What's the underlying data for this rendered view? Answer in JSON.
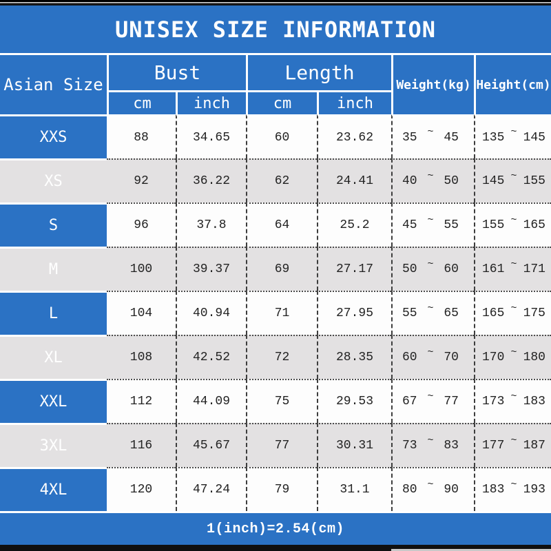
{
  "title": "UNISEX SIZE INFORMATION",
  "footer_note": "1(inch)=2.54(cm)",
  "tilde": "~",
  "header": {
    "asian_size": "Asian Size",
    "bust": "Bust",
    "length": "Length",
    "weight": "Weight(kg)",
    "height": "Height(cm)",
    "cm": "cm",
    "inch": "inch"
  },
  "colors": {
    "blue": "#2b72c4",
    "row_alt": "#e3e1e2",
    "row_base": "#fdfdfd",
    "text": "#222222"
  },
  "rows": [
    {
      "size": "XXS",
      "bust_cm": "88",
      "bust_in": "34.65",
      "len_cm": "60",
      "len_in": "23.62",
      "weight_min": "35",
      "weight_max": "45",
      "height_min": "135",
      "height_max": "145"
    },
    {
      "size": "XS",
      "bust_cm": "92",
      "bust_in": "36.22",
      "len_cm": "62",
      "len_in": "24.41",
      "weight_min": "40",
      "weight_max": "50",
      "height_min": "145",
      "height_max": "155"
    },
    {
      "size": "S",
      "bust_cm": "96",
      "bust_in": "37.8",
      "len_cm": "64",
      "len_in": "25.2",
      "weight_min": "45",
      "weight_max": "55",
      "height_min": "155",
      "height_max": "165"
    },
    {
      "size": "M",
      "bust_cm": "100",
      "bust_in": "39.37",
      "len_cm": "69",
      "len_in": "27.17",
      "weight_min": "50",
      "weight_max": "60",
      "height_min": "161",
      "height_max": "171"
    },
    {
      "size": "L",
      "bust_cm": "104",
      "bust_in": "40.94",
      "len_cm": "71",
      "len_in": "27.95",
      "weight_min": "55",
      "weight_max": "65",
      "height_min": "165",
      "height_max": "175"
    },
    {
      "size": "XL",
      "bust_cm": "108",
      "bust_in": "42.52",
      "len_cm": "72",
      "len_in": "28.35",
      "weight_min": "60",
      "weight_max": "70",
      "height_min": "170",
      "height_max": "180"
    },
    {
      "size": "XXL",
      "bust_cm": "112",
      "bust_in": "44.09",
      "len_cm": "75",
      "len_in": "29.53",
      "weight_min": "67",
      "weight_max": "77",
      "height_min": "173",
      "height_max": "183"
    },
    {
      "size": "3XL",
      "bust_cm": "116",
      "bust_in": "45.67",
      "len_cm": "77",
      "len_in": "30.31",
      "weight_min": "73",
      "weight_max": "83",
      "height_min": "177",
      "height_max": "187"
    },
    {
      "size": "4XL",
      "bust_cm": "120",
      "bust_in": "47.24",
      "len_cm": "79",
      "len_in": "31.1",
      "weight_min": "80",
      "weight_max": "90",
      "height_min": "183",
      "height_max": "193"
    }
  ],
  "chart_data": {
    "type": "table",
    "title": "UNISEX SIZE INFORMATION",
    "columns": [
      "Asian Size",
      "Bust cm",
      "Bust inch",
      "Length cm",
      "Length inch",
      "Weight(kg)",
      "Height(cm)"
    ],
    "rows": [
      [
        "XXS",
        88,
        34.65,
        60,
        23.62,
        "35~45",
        "135~145"
      ],
      [
        "XS",
        92,
        36.22,
        62,
        24.41,
        "40~50",
        "145~155"
      ],
      [
        "S",
        96,
        37.8,
        64,
        25.2,
        "45~55",
        "155~165"
      ],
      [
        "M",
        100,
        39.37,
        69,
        27.17,
        "50~60",
        "161~171"
      ],
      [
        "L",
        104,
        40.94,
        71,
        27.95,
        "55~65",
        "165~175"
      ],
      [
        "XL",
        108,
        42.52,
        72,
        28.35,
        "60~70",
        "170~180"
      ],
      [
        "XXL",
        112,
        44.09,
        75,
        29.53,
        "67~77",
        "173~183"
      ],
      [
        "3XL",
        116,
        45.67,
        77,
        30.31,
        "73~83",
        "177~187"
      ],
      [
        "4XL",
        120,
        47.24,
        79,
        31.1,
        "80~90",
        "183~193"
      ]
    ],
    "note": "1(inch)=2.54(cm)",
    "layout": "blue header band top, 2-level column header, alternating white/grey rows, blue footer band"
  }
}
